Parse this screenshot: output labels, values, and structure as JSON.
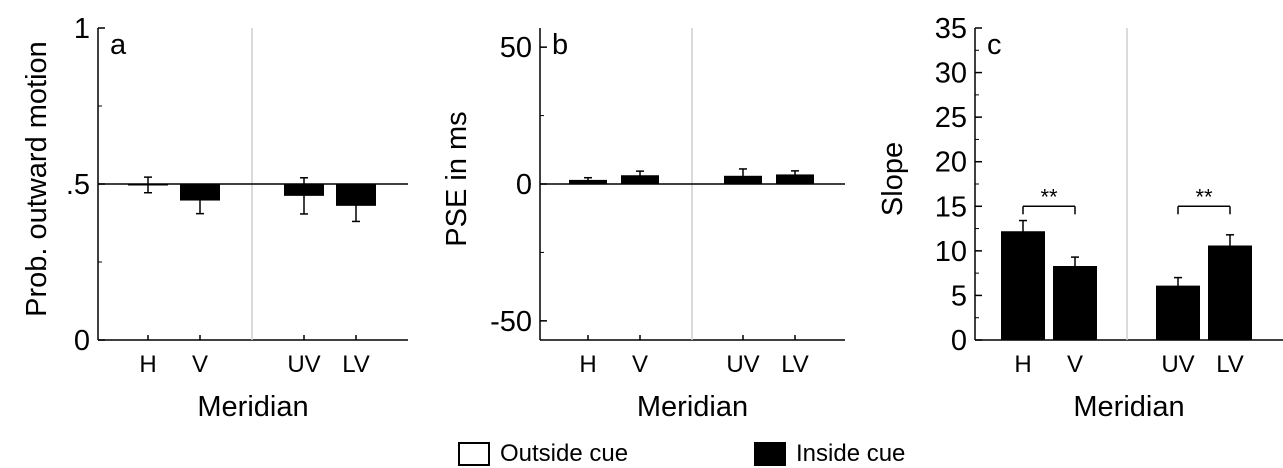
{
  "chart_data": [
    {
      "type": "bar",
      "panel_label": "a",
      "ylabel": "Prob. outward motion",
      "xlabel": "Meridian",
      "ylim": [
        0,
        1
      ],
      "ticks": [
        0,
        0.5,
        1
      ],
      "tick_labels": [
        "0",
        ".5",
        "1"
      ],
      "baseline": 0.5,
      "categories": [
        "H",
        "V",
        "UV",
        "LV"
      ],
      "values": [
        0.497,
        0.447,
        0.462,
        0.43
      ],
      "errors": [
        0.025,
        0.042,
        0.058,
        0.05
      ],
      "annotations": []
    },
    {
      "type": "bar",
      "panel_label": "b",
      "ylabel": "PSE in ms",
      "xlabel": "Meridian",
      "ylim": [
        -57,
        57
      ],
      "ticks": [
        -50,
        0,
        50
      ],
      "tick_labels": [
        "-50",
        "0",
        "50"
      ],
      "baseline": 0,
      "categories": [
        "H",
        "V",
        "UV",
        "LV"
      ],
      "values": [
        1.5,
        3.2,
        3.0,
        3.5
      ],
      "errors": [
        0.8,
        1.5,
        2.5,
        1.3
      ],
      "annotations": []
    },
    {
      "type": "bar",
      "panel_label": "c",
      "ylabel": "Slope",
      "xlabel": "Meridian",
      "ylim": [
        0,
        35
      ],
      "ticks": [
        0,
        5,
        10,
        15,
        20,
        25,
        30,
        35
      ],
      "tick_labels": [
        "0",
        "5",
        "10",
        "15",
        "20",
        "25",
        "30",
        "35"
      ],
      "baseline": 0,
      "categories": [
        "H",
        "V",
        "UV",
        "LV"
      ],
      "values": [
        12.2,
        8.3,
        6.1,
        10.6
      ],
      "errors": [
        1.2,
        1.0,
        0.9,
        1.2
      ],
      "annotations": [
        {
          "text": "**",
          "between": [
            0,
            1
          ],
          "y": 15.0
        },
        {
          "text": "**",
          "between": [
            2,
            3
          ],
          "y": 15.0
        }
      ]
    }
  ],
  "legend": [
    {
      "label": "Outside cue",
      "color": "#ffffff"
    },
    {
      "label": "Inside cue",
      "color": "#000000"
    }
  ]
}
